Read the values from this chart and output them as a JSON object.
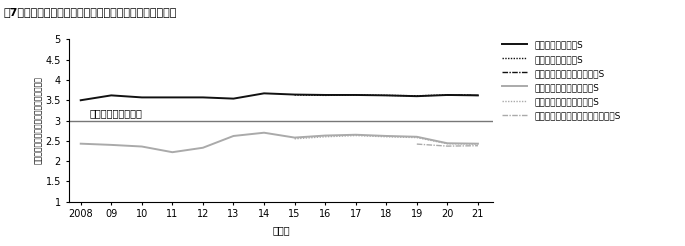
{
  "title": "図7　生活満足感と「日本社会への希望」の平均値の推移",
  "xlabel": "調査年",
  "ylabel": "値が高いほど「希望あり」または「満足」",
  "years": [
    2008,
    2009,
    2010,
    2011,
    2012,
    2013,
    2014,
    2015,
    2016,
    2017,
    2018,
    2019,
    2020,
    2021
  ],
  "life_satisfaction_continuous": [
    3.5,
    3.62,
    3.57,
    3.57,
    3.57,
    3.54,
    3.67,
    3.64,
    3.63,
    3.63,
    3.62,
    3.6,
    3.63,
    3.62
  ],
  "life_satisfaction_added": [
    null,
    null,
    null,
    null,
    null,
    null,
    null,
    3.63,
    3.62,
    3.63,
    3.62,
    3.61,
    3.63,
    3.62
  ],
  "life_satisfaction_refresh": [
    null,
    null,
    null,
    null,
    null,
    null,
    null,
    null,
    null,
    null,
    null,
    null,
    3.63,
    3.62
  ],
  "hope_continuous": [
    2.43,
    2.4,
    2.36,
    2.22,
    2.33,
    2.62,
    2.7,
    2.58,
    2.63,
    2.65,
    2.62,
    2.6,
    2.44,
    2.43
  ],
  "hope_added": [
    null,
    null,
    null,
    null,
    null,
    null,
    null,
    2.55,
    2.6,
    2.63,
    2.6,
    2.58,
    2.43,
    2.42
  ],
  "hope_refresh": [
    null,
    null,
    null,
    null,
    null,
    null,
    null,
    null,
    null,
    null,
    null,
    2.42,
    2.37,
    2.38
  ],
  "neutral_line": 3.0,
  "neutral_label": "どちらともいえない",
  "ylim": [
    1,
    5
  ],
  "yticks": [
    1,
    1.5,
    2,
    2.5,
    3,
    3.5,
    4,
    4.5,
    5
  ],
  "ytick_labels": [
    "1",
    "1.5",
    "2",
    "2.5",
    "3",
    "3.5",
    "4",
    "4.5",
    "5"
  ],
  "color_life": "#111111",
  "color_hope": "#aaaaaa",
  "color_neutral": "#777777",
  "legend_labels": [
    "生活満足感　継続S",
    "生活満足感　追加S",
    "生活満足感　リフレッシュS",
    "日本社会への希望　継続S",
    "日本社会への希望　追加S",
    "日本社会への希望　リフレッシュS"
  ]
}
